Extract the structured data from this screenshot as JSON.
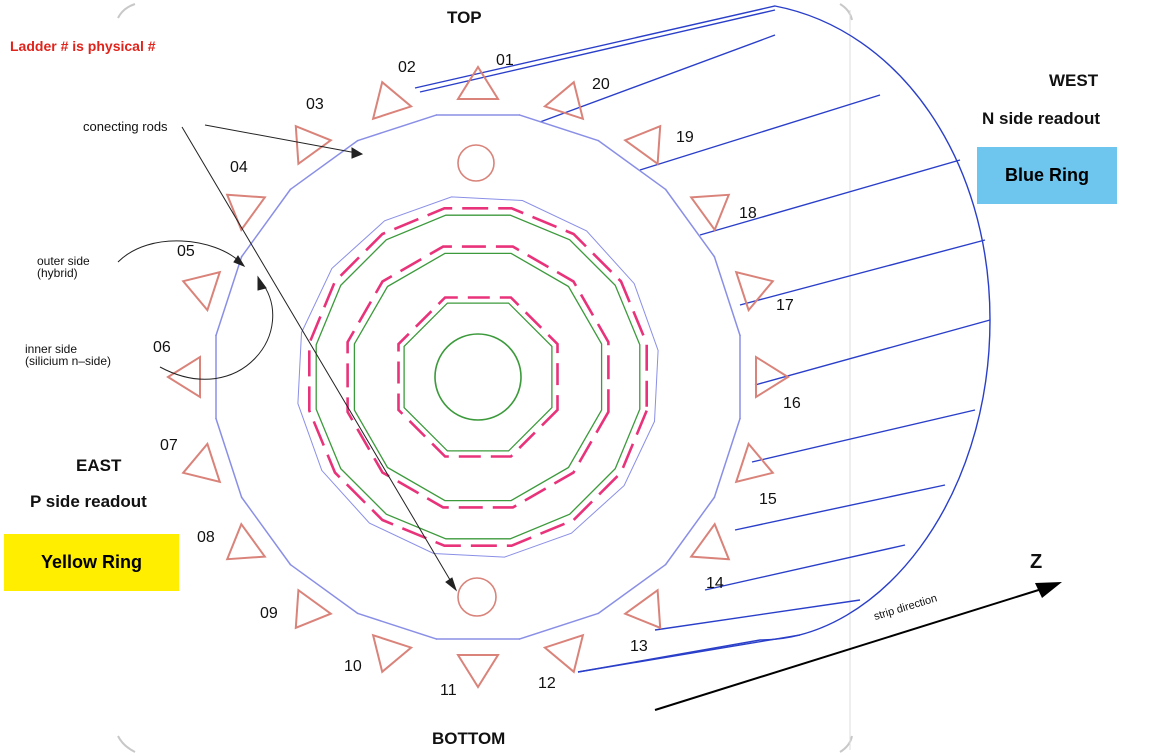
{
  "title": "Ladder # is physical #",
  "orientation": {
    "top": "TOP",
    "bottom": "BOTTOM",
    "west": "WEST",
    "west_readout": "N  side readout",
    "east": "EAST",
    "east_readout": "P side readout"
  },
  "rings": {
    "blue": {
      "label": "Blue Ring",
      "color": "#6ec6ee"
    },
    "yellow": {
      "label": "Yellow Ring",
      "color": "#ffee00"
    }
  },
  "annotations": {
    "connecting_rods": "conecting rods",
    "outer_side_line1": "outer side",
    "outer_side_line2": "(hybrid)",
    "inner_side_line1": "inner side",
    "inner_side_line2": "(silicium n–side)",
    "strip_direction": "strip direction",
    "z_axis": "Z"
  },
  "ladders": [
    "01",
    "02",
    "03",
    "04",
    "05",
    "06",
    "07",
    "08",
    "09",
    "10",
    "11",
    "12",
    "13",
    "14",
    "15",
    "16",
    "17",
    "18",
    "19",
    "20"
  ],
  "colors": {
    "title_red": "#e0231b",
    "ladder_triangle": "#d9837a",
    "ladder_line": "#8a8fe6",
    "cylinder_blue": "#2a3fc9",
    "inner_pink": "#e8337a",
    "inner_green": "#3c9a3c"
  }
}
